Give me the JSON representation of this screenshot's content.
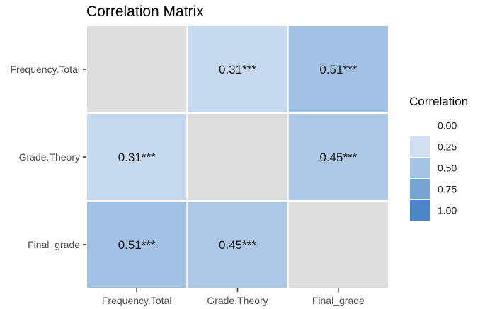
{
  "chart_data": {
    "type": "heatmap",
    "title": "Correlation Matrix",
    "xlabel": "",
    "ylabel": "",
    "x_categories": [
      "Frequency.Total",
      "Grade.Theory",
      "Final_grade"
    ],
    "y_categories": [
      "Frequency.Total",
      "Grade.Theory",
      "Final_grade"
    ],
    "cells": [
      {
        "row": 0,
        "col": 0,
        "value": null,
        "label": ""
      },
      {
        "row": 0,
        "col": 1,
        "value": 0.31,
        "label": "0.31***"
      },
      {
        "row": 0,
        "col": 2,
        "value": 0.51,
        "label": "0.51***"
      },
      {
        "row": 1,
        "col": 0,
        "value": 0.31,
        "label": "0.31***"
      },
      {
        "row": 1,
        "col": 1,
        "value": null,
        "label": ""
      },
      {
        "row": 1,
        "col": 2,
        "value": 0.45,
        "label": "0.45***"
      },
      {
        "row": 2,
        "col": 0,
        "value": 0.51,
        "label": "0.51***"
      },
      {
        "row": 2,
        "col": 1,
        "value": 0.45,
        "label": "0.45***"
      },
      {
        "row": 2,
        "col": 2,
        "value": null,
        "label": ""
      }
    ],
    "diagonal_color": "#dedede",
    "color_scale": {
      "low": "#ffffff",
      "high": "#4a86c8",
      "min": 0,
      "max": 1
    },
    "legend": {
      "title": "Correlation",
      "placement": "right",
      "entries": [
        {
          "label": "0.00",
          "value": 0.0
        },
        {
          "label": "0.25",
          "value": 0.25
        },
        {
          "label": "0.50",
          "value": 0.5
        },
        {
          "label": "0.75",
          "value": 0.75
        },
        {
          "label": "1.00",
          "value": 1.0
        }
      ]
    },
    "grid": false
  }
}
